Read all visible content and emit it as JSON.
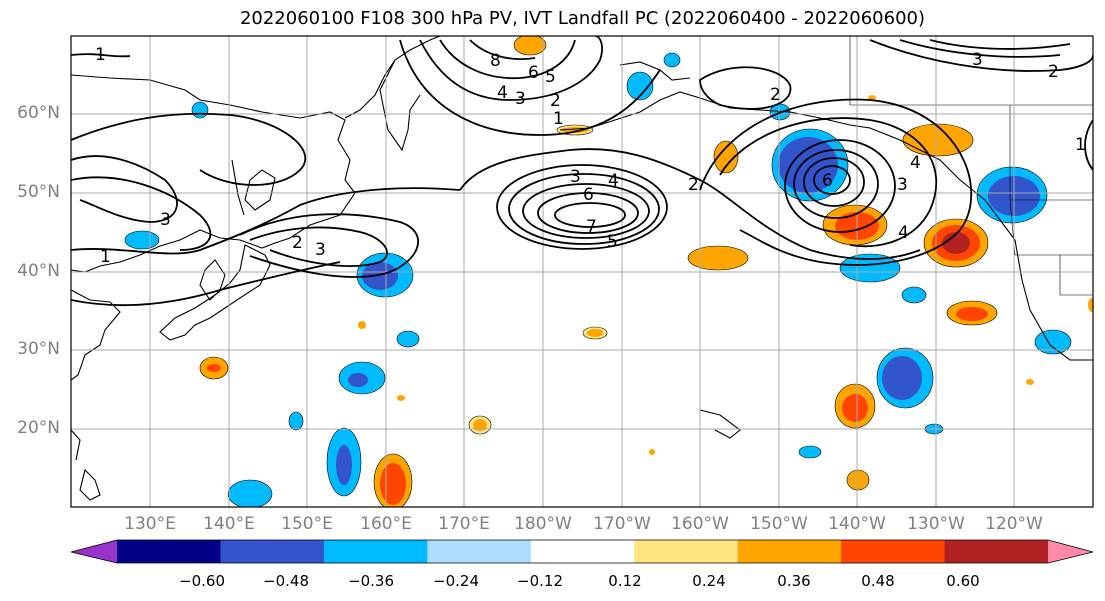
{
  "title": "2022060100 F108 300 hPa PV, IVT Landfall PC (2022060400 - 2022060600)",
  "lat_labels": [
    "60°N",
    "50°N",
    "40°N",
    "30°N",
    "20°N"
  ],
  "lon_labels": [
    "130°E",
    "140°E",
    "150°E",
    "160°E",
    "170°E",
    "180°W",
    "170°W",
    "160°W",
    "150°W",
    "140°W",
    "130°W",
    "120°W"
  ],
  "colorbar": {
    "ticks": [
      "−0.60",
      "−0.48",
      "−0.36",
      "−0.24",
      "−0.12",
      "0.12",
      "0.24",
      "0.36",
      "0.48",
      "0.60"
    ],
    "colors": [
      "#9933cc",
      "#000088",
      "#3355cc",
      "#00bbff",
      "#aaddff",
      "#ffffff",
      "#ffe680",
      "#ffa500",
      "#ff4500",
      "#b22222",
      "#ff88aa"
    ]
  },
  "contour_labels": [
    "1",
    "2",
    "3",
    "4",
    "5",
    "6",
    "7",
    "8"
  ],
  "colors": {
    "coast": "#000000",
    "grid": "#aaaaaa",
    "contour": "#000000"
  }
}
